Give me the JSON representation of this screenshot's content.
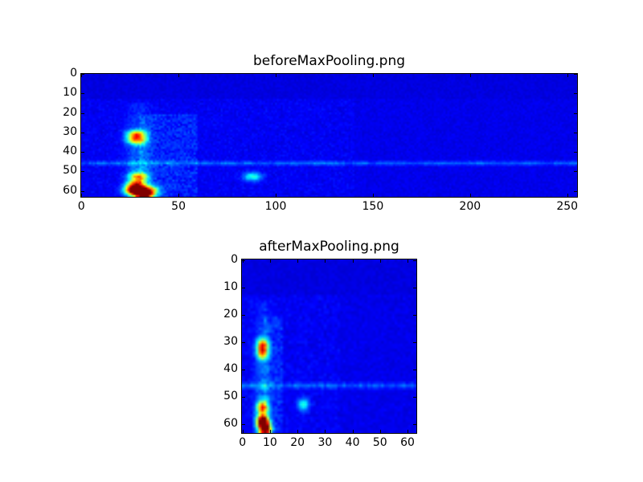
{
  "chart_data": [
    {
      "type": "heatmap",
      "title": "beforeMaxPooling.png",
      "colormap": "jet",
      "shape": [
        64,
        256
      ],
      "xlim": [
        0,
        256
      ],
      "ylim": [
        64,
        0
      ],
      "xticks": [
        0,
        50,
        100,
        150,
        200,
        250
      ],
      "yticks": [
        0,
        10,
        20,
        30,
        40,
        50,
        60
      ],
      "features": {
        "vertical_band_x": 29,
        "horizontal_band_y": 46,
        "hotspots": [
          {
            "x": 28,
            "y": 31,
            "v": 0.55
          },
          {
            "x": 28,
            "y": 34,
            "v": 0.5
          },
          {
            "x": 29,
            "y": 53,
            "v": 0.5
          },
          {
            "x": 28,
            "y": 57,
            "v": 0.55
          },
          {
            "x": 27,
            "y": 60,
            "v": 0.95
          },
          {
            "x": 32,
            "y": 62,
            "v": 0.9
          },
          {
            "x": 35,
            "y": 60,
            "v": 0.45
          },
          {
            "x": 88,
            "y": 53,
            "v": 0.3
          }
        ]
      }
    },
    {
      "type": "heatmap",
      "title": "afterMaxPooling.png",
      "colormap": "jet",
      "shape": [
        64,
        64
      ],
      "xlim": [
        0,
        64
      ],
      "ylim": [
        64,
        0
      ],
      "xticks": [
        0,
        10,
        20,
        30,
        40,
        50,
        60
      ],
      "yticks": [
        0,
        10,
        20,
        30,
        40,
        50,
        60
      ],
      "features": {
        "vertical_band_x": 7,
        "horizontal_band_y": 46,
        "hotspots": [
          {
            "x": 7,
            "y": 31,
            "v": 0.6
          },
          {
            "x": 7,
            "y": 34,
            "v": 0.55
          },
          {
            "x": 7,
            "y": 54,
            "v": 0.6
          },
          {
            "x": 7,
            "y": 59,
            "v": 0.95
          },
          {
            "x": 8,
            "y": 62,
            "v": 0.95
          },
          {
            "x": 22,
            "y": 53,
            "v": 0.3
          }
        ]
      }
    }
  ]
}
